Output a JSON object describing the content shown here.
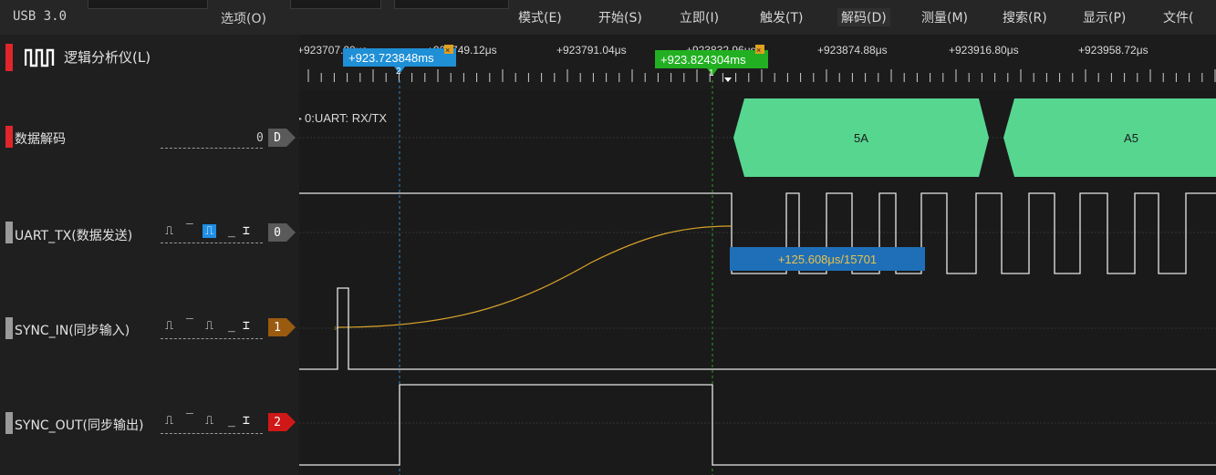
{
  "menubar": {
    "device": "USB 3.0",
    "options": "选项(O)",
    "items": [
      {
        "label": "模式(E)"
      },
      {
        "label": "开始(S)"
      },
      {
        "label": "立即(I)"
      },
      {
        "label": "触发(T)"
      },
      {
        "label": "解码(D)"
      },
      {
        "label": "测量(M)"
      },
      {
        "label": "搜索(R)"
      },
      {
        "label": "显示(P)"
      },
      {
        "label": "文件("
      }
    ]
  },
  "analyzer": {
    "title": "逻辑分析仪(L)",
    "icon": "logic-waveform-icon"
  },
  "time_ruler": {
    "ticks": [
      "+923707.20μs",
      "+923749.12μs",
      "+923791.04μs",
      "+923832.96μs",
      "+923874.88μs",
      "+923916.80μs",
      "+923958.72μs"
    ],
    "cursor1": {
      "label": "+923.723848ms",
      "number": "2",
      "color": "#1f8fd6"
    },
    "cursor2": {
      "label": "+923.824304ms",
      "number": "1",
      "color": "#22b022"
    }
  },
  "channels": [
    {
      "id": "decode",
      "label": "数据解码",
      "badge": "D",
      "badge_prefix": "0",
      "marker_color": "#e0262b",
      "badge_color": "#5a5a5a"
    },
    {
      "id": "uart_tx",
      "label": "UART_TX(数据发送)",
      "badge": "0",
      "marker_color": "#9a9a9a",
      "badge_color": "#5a5a5a"
    },
    {
      "id": "sync_in",
      "label": "SYNC_IN(同步输入)",
      "badge": "1",
      "marker_color": "#9a9a9a",
      "badge_color": "#9a5a10"
    },
    {
      "id": "sync_out",
      "label": "SYNC_OUT(同步输出)",
      "badge": "2",
      "marker_color": "#9a9a9a",
      "badge_color": "#d01818"
    }
  ],
  "trigger_icons": [
    "rising-edge-icon",
    "high-level-icon",
    "falling-edge-icon",
    "low-level-icon",
    "any-edge-icon"
  ],
  "decoder": {
    "name": "0:UART: RX/TX",
    "values": [
      "5A",
      "A5"
    ],
    "color": "#57d690"
  },
  "measurement": {
    "label": "+125.608μs/15701",
    "color": "#1f6fb8",
    "text_color": "#e8c24a"
  },
  "colors": {
    "background": "#1a1a1a",
    "signal": "#e8e8e8",
    "curve": "#d8a22a"
  }
}
